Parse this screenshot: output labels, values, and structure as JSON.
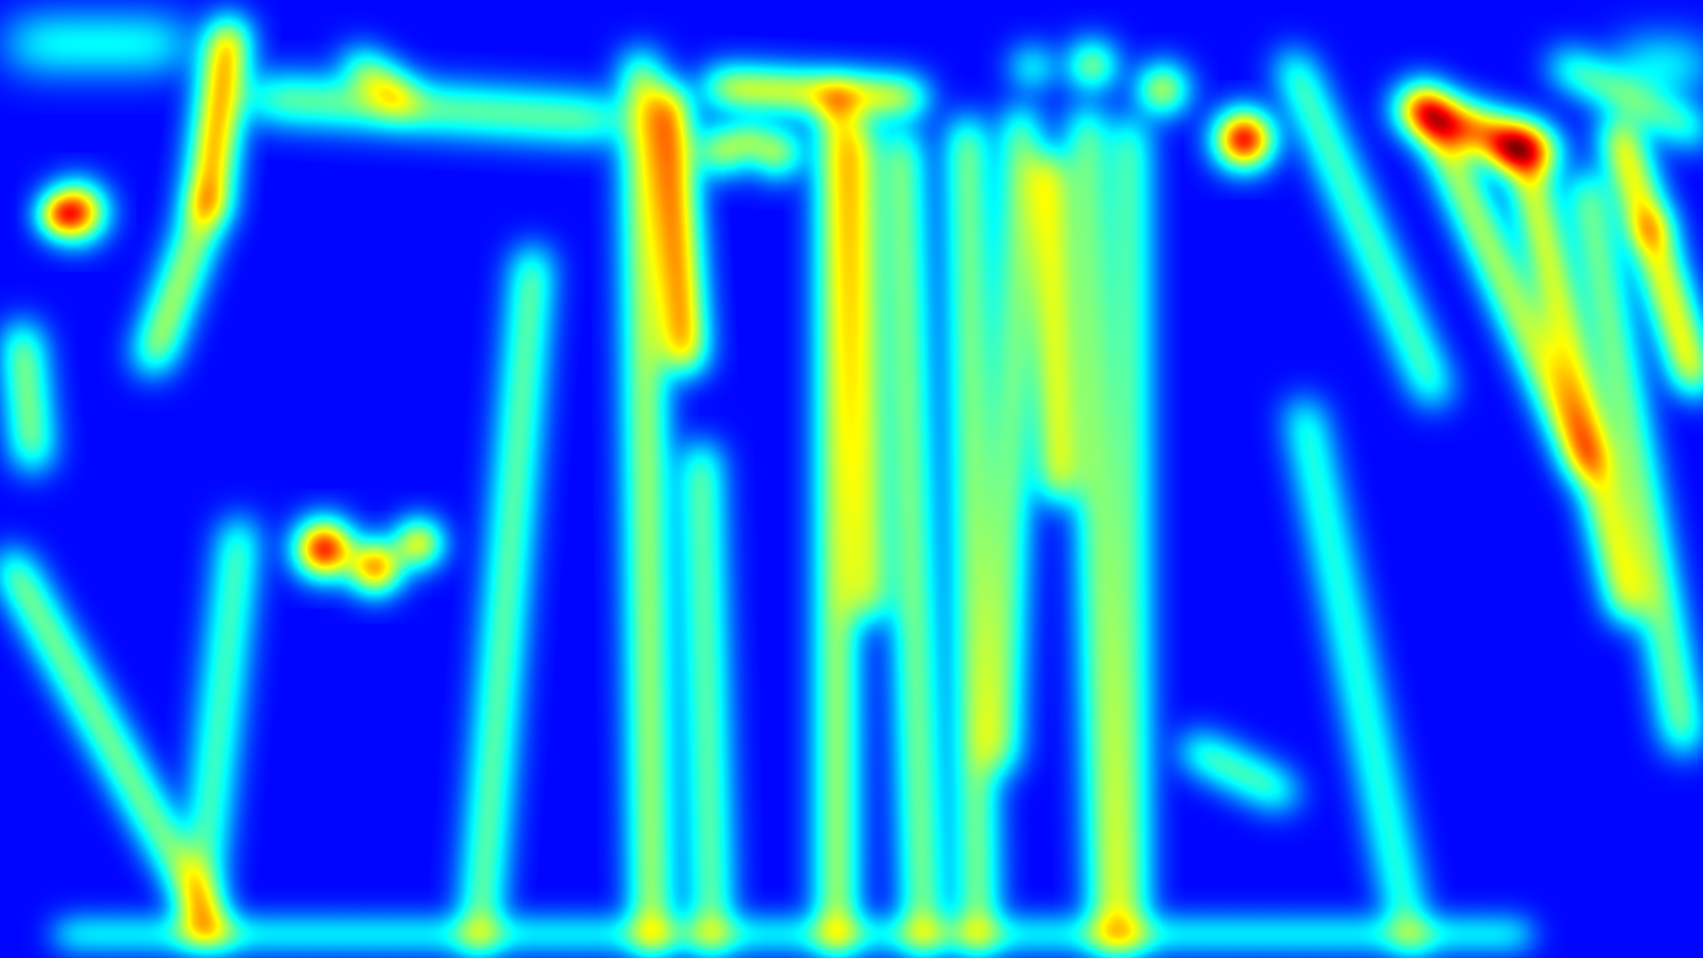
{
  "heatmap": {
    "colormap": "jet",
    "background_color": "#00008b",
    "colormap_stops": [
      "#00007f",
      "#0000ff",
      "#00ffff",
      "#ffff00",
      "#ff0000",
      "#7f0000"
    ],
    "hotspots_level": "high",
    "trails_level": "low-to-moderate"
  }
}
